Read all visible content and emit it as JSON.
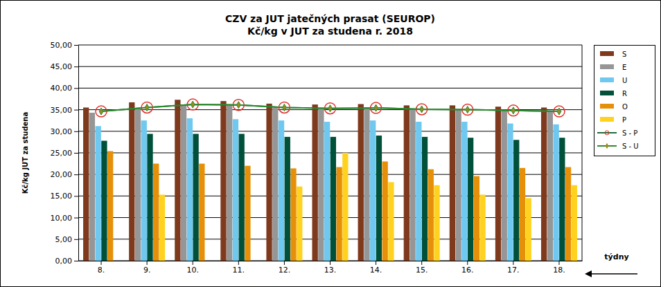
{
  "chart_data": {
    "type": "bar",
    "title": "CZV za JUT jatečných prasat (SEUROP)",
    "subtitle": "Kč/kg v JUT za studena r. 2018",
    "y_label": "Kč/kg  JUT za studena",
    "x_label": "týdny",
    "categories": [
      "8.",
      "9.",
      "10.",
      "11.",
      "12.",
      "13.",
      "14.",
      "15.",
      "16.",
      "17.",
      "18."
    ],
    "ylim": [
      0,
      50
    ],
    "yticks": [
      {
        "value": 0,
        "label": "0,00"
      },
      {
        "value": 5,
        "label": "5,00"
      },
      {
        "value": 10,
        "label": "10,00"
      },
      {
        "value": 15,
        "label": "15,00"
      },
      {
        "value": 20,
        "label": "20,00"
      },
      {
        "value": 25,
        "label": "25,00"
      },
      {
        "value": 30,
        "label": "30,00"
      },
      {
        "value": 35,
        "label": "35,00"
      },
      {
        "value": 40,
        "label": "40,00"
      },
      {
        "value": 45,
        "label": "45,00"
      },
      {
        "value": 50,
        "label": "50,00"
      }
    ],
    "grid": true,
    "legend": "right",
    "series": [
      {
        "name": "S",
        "color": "#7f3a1e",
        "values": [
          35.5,
          36.7,
          37.3,
          37.0,
          36.4,
          36.2,
          36.3,
          36.0,
          36.0,
          35.7,
          35.5
        ]
      },
      {
        "name": "E",
        "color": "#969696",
        "values": [
          34.3,
          35.4,
          36.2,
          36.0,
          35.4,
          35.2,
          35.4,
          35.1,
          35.0,
          34.8,
          34.6
        ]
      },
      {
        "name": "U",
        "color": "#6ec8f0",
        "values": [
          31.2,
          32.5,
          33.0,
          32.8,
          32.5,
          32.2,
          32.5,
          32.2,
          32.2,
          31.8,
          31.6
        ]
      },
      {
        "name": "R",
        "color": "#00503a",
        "values": [
          27.8,
          29.4,
          29.4,
          29.4,
          28.7,
          28.7,
          29.0,
          28.7,
          28.5,
          28.0,
          28.5
        ]
      },
      {
        "name": "O",
        "color": "#e6900a",
        "values": [
          25.4,
          22.5,
          22.5,
          22.0,
          21.4,
          21.7,
          23.0,
          21.2,
          19.6,
          21.5,
          21.7
        ]
      },
      {
        "name": "P",
        "color": "#ffd21f",
        "values": [
          null,
          15.3,
          null,
          null,
          17.2,
          25.0,
          18.2,
          17.5,
          15.3,
          14.5,
          17.5
        ]
      },
      {
        "name": "S - P",
        "type": "line",
        "color": "#1f6b3a",
        "marker": "circle",
        "line_style": "solid",
        "values": [
          34.6,
          35.5,
          36.2,
          36.1,
          35.5,
          35.3,
          35.4,
          35.1,
          35.0,
          34.8,
          34.6
        ]
      },
      {
        "name": "S - U",
        "type": "line",
        "color": "#2e8b2e",
        "marker": "diamond",
        "line_style": "solid",
        "values": [
          34.6,
          35.5,
          36.2,
          36.1,
          35.5,
          35.3,
          35.4,
          35.1,
          35.0,
          34.8,
          34.6
        ]
      }
    ]
  }
}
